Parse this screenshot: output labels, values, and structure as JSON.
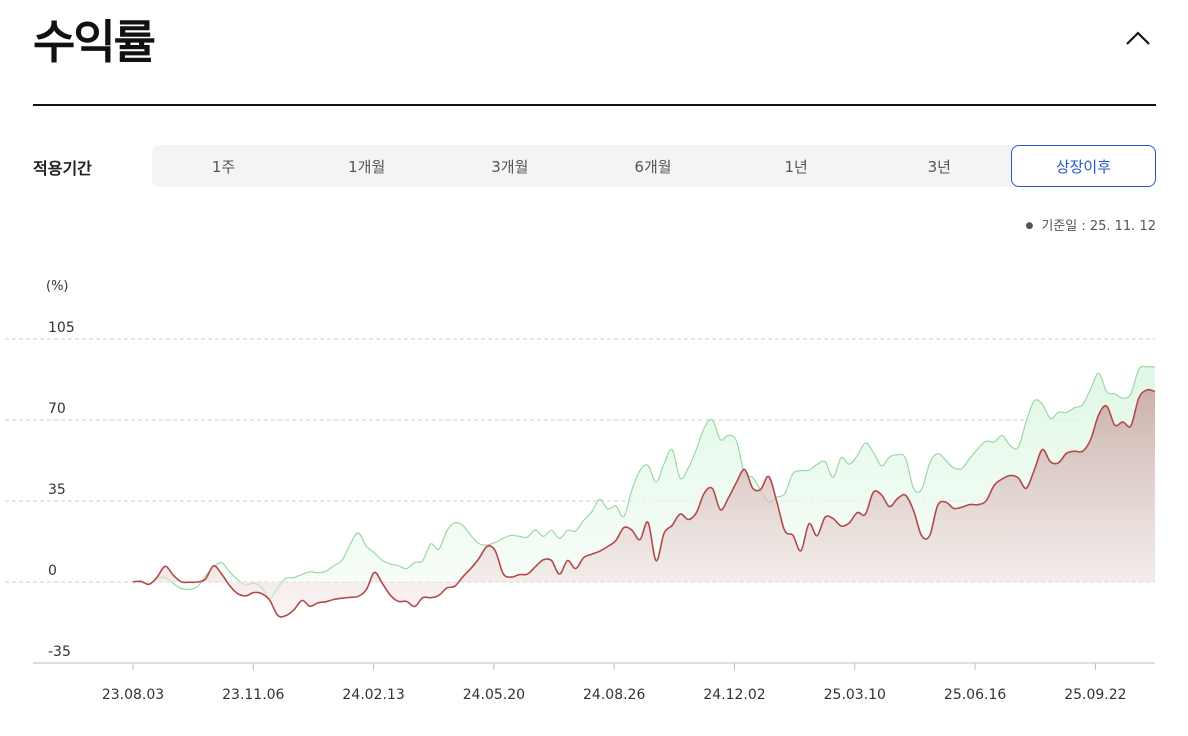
{
  "header": {
    "title": "수익률",
    "collapse_icon": "chevron-up-icon"
  },
  "period": {
    "label": "적용기간",
    "options": [
      "1주",
      "1개월",
      "3개월",
      "6개월",
      "1년",
      "3년",
      "상장이후"
    ],
    "selected": "상장이후"
  },
  "base_date": "기준일 : 25. 11. 12",
  "colors": {
    "accent": "#2a56c6",
    "series_1": "#b34a4a",
    "series_2": "#9ad8a4"
  },
  "chart_data": {
    "type": "area",
    "ylabel": "(%)",
    "ylim": [
      -35,
      105
    ],
    "y_ticks": [
      105,
      70,
      35,
      0,
      -35
    ],
    "x_ticks": [
      "23.08.03",
      "23.11.06",
      "24.02.13",
      "24.05.20",
      "24.08.26",
      "24.12.02",
      "25.03.10",
      "25.06.16",
      "25.09.22"
    ],
    "grid": true,
    "series": [
      {
        "values": [
          0.1,
          0.2,
          -1.0,
          2.1,
          6.8,
          3.0,
          0.1,
          -0.1,
          0.0,
          1.2,
          7.0,
          3.5,
          -1.5,
          -5.0,
          -6.0,
          -4.6,
          -5.0,
          -8.0,
          -14.5,
          -14.5,
          -12.0,
          -8.0,
          -10.5,
          -9.0,
          -8.5,
          -7.5,
          -7.0,
          -6.6,
          -6.2,
          -3.3,
          4.1,
          -0.7,
          -5.8,
          -8.4,
          -8.4,
          -10.6,
          -6.8,
          -6.8,
          -5.8,
          -2.6,
          -1.8,
          2.3,
          5.9,
          10.2,
          15.4,
          13.6,
          3.6,
          2.1,
          3.2,
          3.4,
          6.6,
          9.6,
          9.3,
          3.4,
          9.3,
          5.8,
          10.5,
          12.0,
          13.3,
          15.4,
          17.9,
          23.5,
          22.4,
          18.3,
          25.8,
          9.2,
          21.1,
          24.5,
          29.4,
          27.0,
          29.9,
          38.5,
          40.4,
          31.2,
          36.4,
          43.1,
          48.6,
          40.6,
          40.0,
          45.6,
          34.7,
          22.1,
          20.2,
          13.5,
          25.2,
          20.0,
          28.0,
          27.4,
          24.2,
          25.5,
          30.0,
          29.2,
          38.8,
          37.7,
          32.6,
          36.0,
          37.5,
          30.8,
          20.0,
          20.1,
          33.1,
          34.5,
          31.8,
          32.3,
          33.5,
          33.4,
          35.0,
          41.7,
          44.5,
          46.0,
          45.0,
          40.5,
          48.4,
          57.2,
          52.0,
          51.5,
          55.6,
          56.5,
          56.5,
          61.5,
          72.3,
          76.0,
          67.8,
          69.2,
          67.5,
          79.6,
          83.0,
          82.3
        ]
      },
      {
        "values": [
          0.1,
          0.5,
          -1.0,
          1.5,
          2.0,
          -0.6,
          -2.8,
          -3.2,
          -2.0,
          2.6,
          6.3,
          8.4,
          4.4,
          1.1,
          -1.3,
          -0.5,
          -2.4,
          -7.1,
          -2.5,
          1.6,
          1.9,
          3.3,
          4.4,
          4.0,
          4.7,
          7.1,
          9.5,
          16.4,
          21.2,
          15.4,
          12.6,
          9.3,
          7.8,
          7.0,
          5.8,
          8.4,
          9.2,
          16.4,
          14.2,
          22.1,
          25.6,
          24.4,
          20.0,
          16.6,
          16.0,
          17.1,
          18.9,
          20.2,
          19.7,
          19.4,
          22.5,
          19.7,
          22.4,
          18.8,
          22.3,
          22.0,
          26.6,
          30.3,
          35.7,
          31.6,
          32.9,
          28.3,
          39.8,
          48.2,
          50.4,
          43.1,
          51.1,
          57.2,
          44.8,
          49.3,
          57.2,
          66.7,
          70.0,
          61.5,
          63.4,
          60.9,
          46.8,
          45.2,
          39.7,
          34.4,
          36.7,
          38.1,
          46.8,
          48.1,
          48.3,
          50.8,
          52.0,
          45.3,
          53.7,
          50.9,
          54.6,
          60.1,
          56.1,
          50.2,
          53.9,
          55.0,
          53.5,
          40.4,
          40.1,
          51.3,
          55.5,
          52.5,
          49.3,
          49.0,
          53.5,
          57.6,
          60.8,
          60.5,
          63.3,
          59.0,
          58.2,
          69.4,
          78.3,
          76.8,
          70.7,
          73.3,
          73.3,
          75.3,
          76.6,
          83.4,
          90.2,
          82.2,
          81.3,
          79.4,
          81.3,
          92.0,
          93.0,
          93.0
        ]
      }
    ]
  }
}
